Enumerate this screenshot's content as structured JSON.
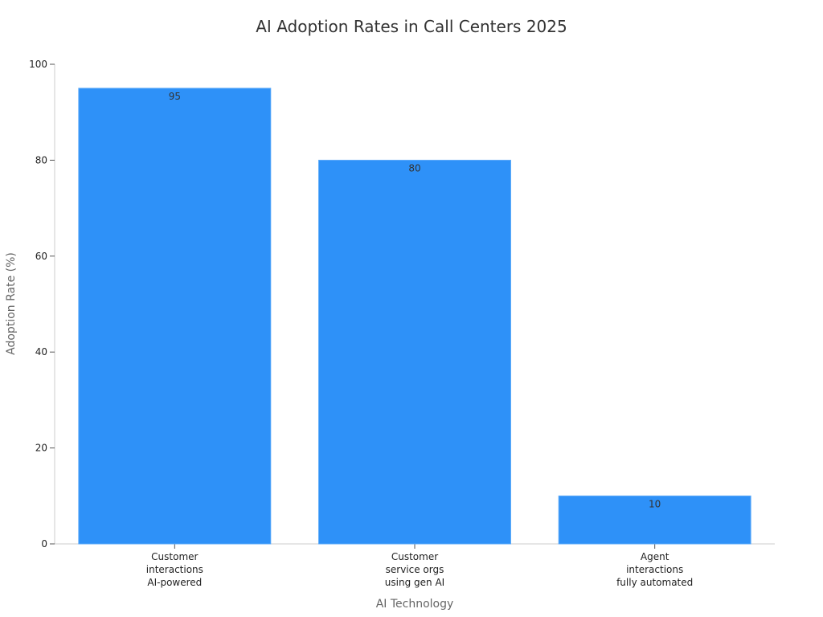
{
  "chart_data": {
    "type": "bar",
    "title": "AI Adoption Rates in Call Centers 2025",
    "xlabel": "AI Technology",
    "ylabel": "Adoption Rate (%)",
    "categories": [
      [
        "Customer",
        "interactions",
        "AI-powered"
      ],
      [
        "Customer",
        "service orgs",
        "using gen AI"
      ],
      [
        "Agent",
        "interactions",
        "fully automated"
      ]
    ],
    "values": [
      95,
      80,
      10
    ],
    "data_labels": [
      "95",
      "80",
      "10"
    ],
    "ylim": [
      0,
      100
    ],
    "yticks": [
      0,
      20,
      40,
      60,
      80,
      100
    ],
    "ytick_labels": [
      "0",
      "20",
      "40",
      "60",
      "80",
      "100"
    ],
    "grid": false,
    "legend": "none",
    "colors": {
      "bar": "#2e91f8",
      "bar_edge": "#5aa9f9",
      "title": "#333333",
      "axis_label": "#666666",
      "tick_label": "#222222",
      "axis_line": "#cccccc",
      "data_label": "#333333"
    }
  }
}
